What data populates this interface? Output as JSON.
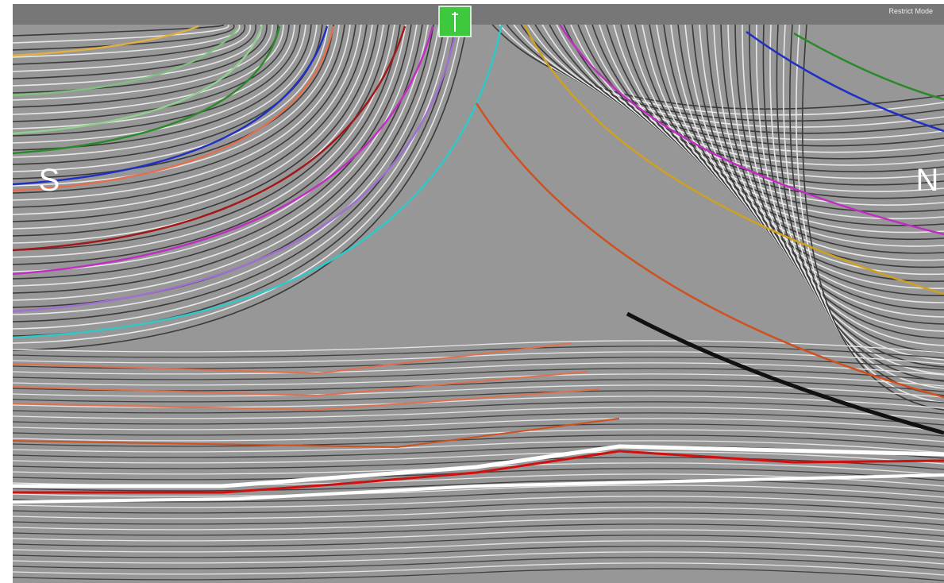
{
  "toolbar": {
    "mode": "Restrict Mode"
  },
  "section": {
    "left_label": "S",
    "right_label": "N"
  }
}
